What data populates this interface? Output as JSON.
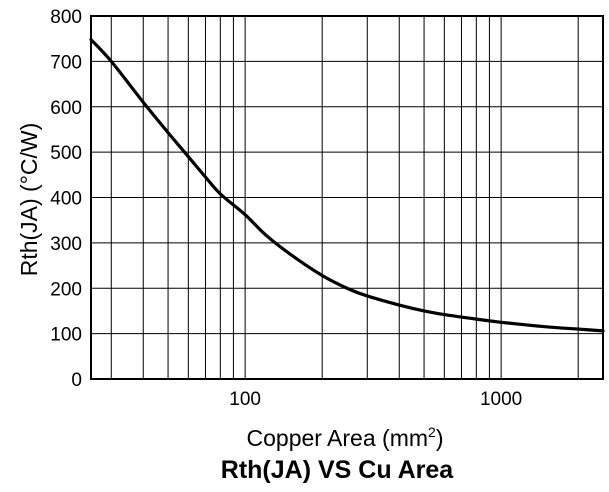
{
  "chart_data": {
    "type": "line",
    "title": "Rth(JA) VS Cu Area",
    "xlabel": "Copper Area (mm",
    "xlabel_superscript": "2",
    "xlabel_suffix": ")",
    "ylabel": "Rth(JA) (°C/W)",
    "x_scale": "log",
    "xlim": [
      25,
      2500
    ],
    "ylim": [
      0,
      800
    ],
    "x_ticks": [
      {
        "value": 100,
        "label": "100"
      },
      {
        "value": 1000,
        "label": "1000"
      }
    ],
    "y_ticks": [
      {
        "value": 0,
        "label": "0"
      },
      {
        "value": 100,
        "label": "100"
      },
      {
        "value": 200,
        "label": "200"
      },
      {
        "value": 300,
        "label": "300"
      },
      {
        "value": 400,
        "label": "400"
      },
      {
        "value": 500,
        "label": "500"
      },
      {
        "value": 600,
        "label": "600"
      },
      {
        "value": 700,
        "label": "700"
      },
      {
        "value": 800,
        "label": "800"
      }
    ],
    "grid": true,
    "series": [
      {
        "color": "#000000",
        "x": [
          25,
          30,
          40,
          50,
          60,
          70,
          80,
          100,
          120,
          150,
          200,
          250,
          300,
          400,
          500,
          600,
          800,
          1000,
          1500,
          2000,
          2500
        ],
        "y": [
          748,
          700,
          610,
          543,
          490,
          445,
          408,
          362,
          318,
          275,
          228,
          200,
          183,
          163,
          150,
          142,
          132,
          125,
          115,
          110,
          106
        ]
      }
    ]
  }
}
